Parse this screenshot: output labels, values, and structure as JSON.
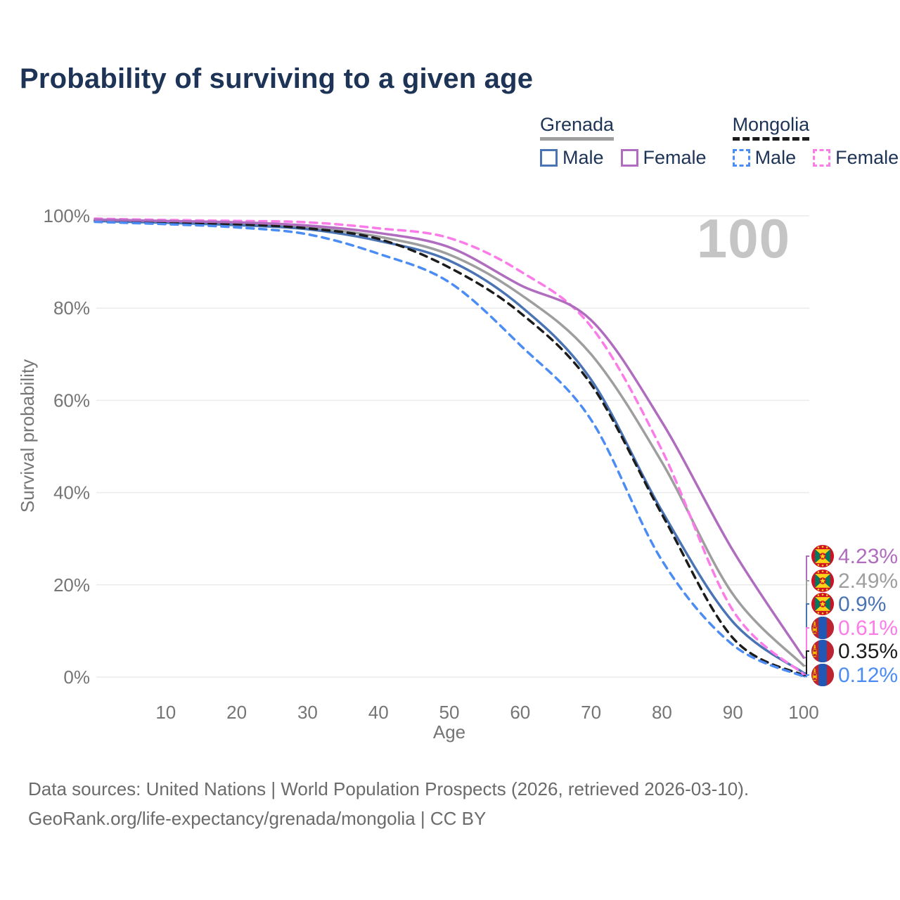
{
  "chart_data": {
    "type": "line",
    "title": "Probability of surviving to a given age",
    "xlabel": "Age",
    "ylabel": "Survival probability",
    "x": [
      0,
      10,
      20,
      30,
      40,
      50,
      60,
      70,
      80,
      90,
      100
    ],
    "xticks": [
      10,
      20,
      30,
      40,
      50,
      60,
      70,
      80,
      90,
      100
    ],
    "ytick_labels": [
      "0%",
      "20%",
      "40%",
      "60%",
      "80%",
      "100%"
    ],
    "ytick_values": [
      0,
      20,
      40,
      60,
      80,
      100
    ],
    "xlim": [
      0,
      100
    ],
    "ylim": [
      0,
      100
    ],
    "grid": "horizontal-only",
    "legend_position": "top-right",
    "age_counter": "100",
    "series": [
      {
        "name": "Grenada Female",
        "country": "Grenada",
        "sex": "Female",
        "style": "solid",
        "color": "#b06cbe",
        "values": [
          99.2,
          98.9,
          98.6,
          97.9,
          96.3,
          93.2,
          85.0,
          77.4,
          55.3,
          27.5,
          4.23
        ],
        "end_label": "4.23%"
      },
      {
        "name": "Grenada",
        "country": "Grenada",
        "sex": "Both",
        "style": "solid",
        "color": "#9e9e9e",
        "values": [
          99.1,
          98.7,
          98.3,
          97.5,
          95.5,
          91.6,
          83.0,
          70.0,
          46.6,
          18.0,
          2.49
        ],
        "end_label": "2.49%"
      },
      {
        "name": "Grenada Male",
        "country": "Grenada",
        "sex": "Male",
        "style": "solid",
        "color": "#4a74b4",
        "values": [
          98.9,
          98.5,
          98.0,
          97.1,
          94.6,
          90.3,
          80.5,
          64.5,
          36.0,
          12.0,
          0.9
        ],
        "end_label": "0.9%"
      },
      {
        "name": "Mongolia Female",
        "country": "Mongolia",
        "sex": "Female",
        "style": "dashed",
        "color": "#fb7ce8",
        "values": [
          99.4,
          99.1,
          98.9,
          98.6,
          97.3,
          95.2,
          88.0,
          76.0,
          49.2,
          14.5,
          0.61
        ],
        "end_label": "0.61%"
      },
      {
        "name": "Mongolia",
        "country": "Mongolia",
        "sex": "Both",
        "style": "dashed",
        "color": "#1c1c1c",
        "values": [
          99.0,
          98.6,
          98.2,
          97.3,
          95.0,
          88.8,
          79.0,
          63.5,
          35.3,
          8.5,
          0.35
        ],
        "end_label": "0.35%"
      },
      {
        "name": "Mongolia Male",
        "country": "Mongolia",
        "sex": "Male",
        "style": "dashed",
        "color": "#4b8cf5",
        "values": [
          98.7,
          98.2,
          97.5,
          96.0,
          91.8,
          85.6,
          72.0,
          55.8,
          25.3,
          7.0,
          0.12
        ],
        "end_label": "0.12%"
      }
    ]
  },
  "legend": {
    "groups": [
      {
        "title": "Grenada",
        "line_style": "solid",
        "line_color": "#9e9e9e",
        "items": [
          {
            "label": "Male",
            "color": "#4a74b4"
          },
          {
            "label": "Female",
            "color": "#b06cbe"
          }
        ]
      },
      {
        "title": "Mongolia",
        "line_style": "dashed",
        "line_color": "#1c1c1c",
        "items": [
          {
            "label": "Male",
            "color": "#4b8cf5"
          },
          {
            "label": "Female",
            "color": "#fb7ce8"
          }
        ]
      }
    ]
  },
  "footer": {
    "line1": "Data sources: United Nations | World Population Prospects (2026, retrieved 2026-03-10).",
    "line2": "GeoRank.org/life-expectancy/grenada/mongolia | CC BY"
  }
}
